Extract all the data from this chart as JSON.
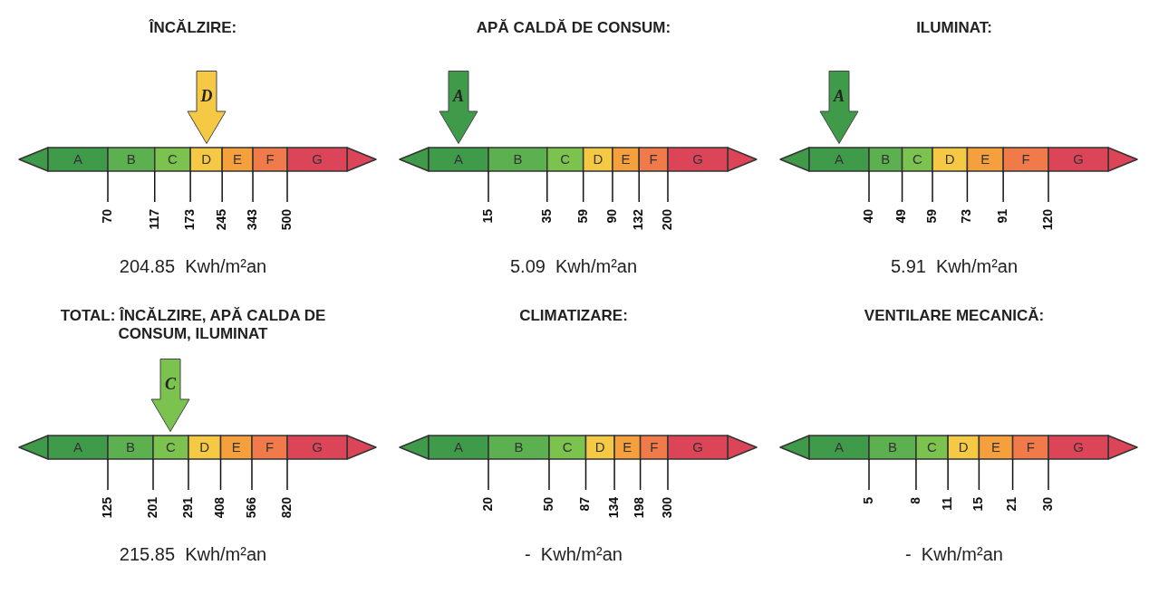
{
  "chart_data": [
    {
      "type": "other",
      "title": "ÎNCĂLZIRE:",
      "categories": [
        "A",
        "B",
        "C",
        "D",
        "E",
        "F",
        "G"
      ],
      "colors": [
        "#3f9a4a",
        "#5cb04f",
        "#7cc24e",
        "#f6c944",
        "#f5a03c",
        "#f07a4a",
        "#dc4458"
      ],
      "needle": "D",
      "values": [
        70,
        117,
        173,
        245,
        343,
        500,
        null
      ],
      "value_labels": [
        "70",
        "117",
        "173",
        "245",
        "343",
        "500",
        null
      ],
      "xlabel": "204.85  Kwh/m²an"
    },
    {
      "type": "other",
      "title": "APĂ CALDĂ DE CONSUM:",
      "categories": [
        "A",
        "B",
        "C",
        "D",
        "E",
        "F",
        "G"
      ],
      "colors": [
        "#3f9a4a",
        "#5cb04f",
        "#7cc24e",
        "#f6c944",
        "#f5a03c",
        "#f07a4a",
        "#dc4458"
      ],
      "needle": "A",
      "values": [
        15,
        35,
        59,
        90,
        132,
        200,
        null
      ],
      "value_labels": [
        "15",
        "35",
        "59",
        "90",
        "132",
        "200",
        null
      ],
      "xlabel": "5.09  Kwh/m²an"
    },
    {
      "type": "other",
      "title": "ILUMINAT:",
      "categories": [
        "A",
        "B",
        "C",
        "D",
        "E",
        "F",
        "G"
      ],
      "colors": [
        "#3f9a4a",
        "#5cb04f",
        "#7cc24e",
        "#f6c944",
        "#f5a03c",
        "#f07a4a",
        "#dc4458"
      ],
      "needle": "A",
      "values": [
        40,
        49,
        59,
        73,
        91,
        120,
        null
      ],
      "value_labels": [
        "40",
        "49",
        "59",
        "73",
        "91",
        "120",
        null
      ],
      "xlabel": "5.91  Kwh/m²an"
    },
    {
      "type": "other",
      "title": "TOTAL: ÎNCĂLZIRE, APĂ CALDA DE CONSUM, ILUMINAT",
      "categories": [
        "A",
        "B",
        "C",
        "D",
        "E",
        "F",
        "G"
      ],
      "colors": [
        "#3f9a4a",
        "#5cb04f",
        "#7cc24e",
        "#f6c944",
        "#f5a03c",
        "#f07a4a",
        "#dc4458"
      ],
      "needle": "C",
      "values": [
        125,
        201,
        291,
        408,
        566,
        820,
        null
      ],
      "value_labels": [
        "125",
        "201",
        "291",
        "408",
        "566",
        "820",
        null
      ],
      "xlabel": "215.85  Kwh/m²an"
    },
    {
      "type": "other",
      "title": "CLIMATIZARE:",
      "categories": [
        "A",
        "B",
        "C",
        "D",
        "E",
        "F",
        "G"
      ],
      "colors": [
        "#3f9a4a",
        "#5cb04f",
        "#7cc24e",
        "#f6c944",
        "#f5a03c",
        "#f07a4a",
        "#dc4458"
      ],
      "values": [
        20,
        50,
        87,
        134,
        198,
        300,
        null
      ],
      "value_labels": [
        "20",
        "50",
        "87",
        "134",
        "198",
        "300",
        null
      ],
      "xlabel": "-  Kwh/m²an"
    },
    {
      "type": "other",
      "title": "VENTILARE MECANICĂ:",
      "categories": [
        "A",
        "B",
        "C",
        "D",
        "E",
        "F",
        "G"
      ],
      "colors": [
        "#3f9a4a",
        "#5cb04f",
        "#7cc24e",
        "#f6c944",
        "#f5a03c",
        "#f07a4a",
        "#dc4458"
      ],
      "values": [
        5,
        8,
        11,
        15,
        21,
        30,
        null
      ],
      "value_labels": [
        "5",
        "8",
        "11",
        "15",
        "21",
        "30",
        null
      ],
      "xlabel": "-  Kwh/m²an"
    }
  ]
}
